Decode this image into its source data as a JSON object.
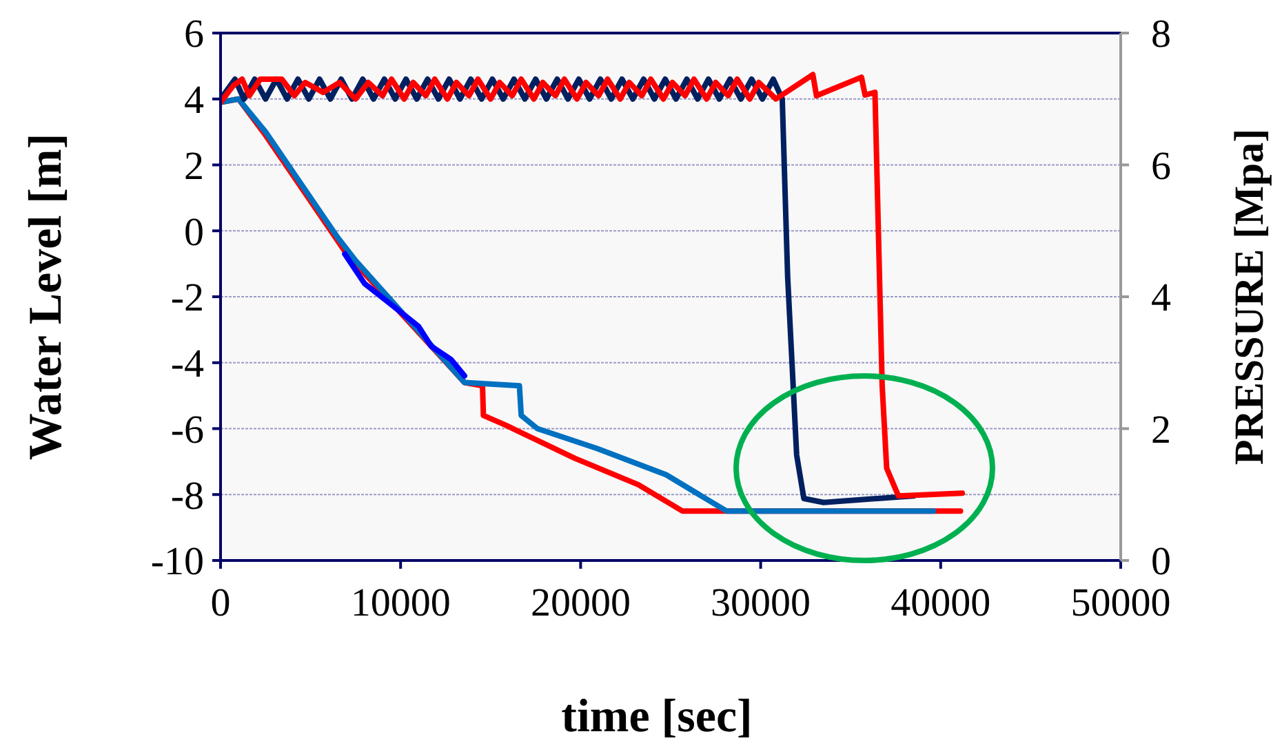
{
  "chart_data": {
    "type": "line",
    "xlabel": "time [sec]",
    "ylabel": "Water Level [m]",
    "y2label": "PRESSURE [Mpa]",
    "xlim": [
      0,
      50000
    ],
    "xticks": [
      0,
      10000,
      20000,
      30000,
      40000,
      50000
    ],
    "ylim": [
      -10,
      6
    ],
    "yticks": [
      -10,
      -8,
      -6,
      -4,
      -2,
      0,
      2,
      4,
      6
    ],
    "y2lim": [
      0,
      8
    ],
    "y2ticks": [
      0,
      2,
      4,
      6,
      8
    ],
    "grid": "y",
    "marker": "none",
    "line_style": "solid",
    "series": [
      {
        "color": "#ff0000",
        "x": [
          0,
          1000,
          2500,
          4000,
          5500,
          6500,
          7000,
          13550,
          14550,
          14600,
          15850,
          19680,
          23200,
          25650,
          41100
        ],
        "values": [
          3.9,
          4.0,
          2.9,
          1.7,
          0.5,
          -0.3,
          -0.7,
          -4.6,
          -4.7,
          -5.6,
          -5.9,
          -6.9,
          -7.7,
          -8.5,
          -8.5
        ]
      },
      {
        "color": "#0070c0",
        "x": [
          0,
          1000,
          2500,
          4000,
          5500,
          6500,
          7500,
          13550,
          16600,
          16700,
          17600,
          20900,
          24750,
          28100,
          39600
        ],
        "values": [
          3.9,
          4.0,
          3.0,
          1.8,
          0.6,
          -0.2,
          -0.9,
          -4.6,
          -4.7,
          -5.6,
          -6.0,
          -6.6,
          -7.4,
          -8.5,
          -8.5
        ]
      },
      {
        "color": "#0000ff",
        "x": [
          6900,
          8000,
          9400,
          11000,
          11700,
          12800,
          13550
        ],
        "values": [
          -0.7,
          -1.6,
          -2.2,
          -2.9,
          -3.5,
          -3.9,
          -4.4
        ]
      },
      {
        "color": "#002060",
        "axis": "y2",
        "x": [
          0,
          800,
          1300,
          1900,
          2500,
          3100,
          3700,
          4300,
          4900,
          5500,
          6100,
          6700,
          7300,
          7900,
          8500,
          9100,
          9700,
          10300,
          10900,
          11500,
          12100,
          12700,
          13300,
          13900,
          14500,
          15100,
          15700,
          16300,
          16900,
          17500,
          18100,
          18700,
          19300,
          19900,
          20500,
          21100,
          21700,
          22300,
          22900,
          23500,
          24100,
          24700,
          25300,
          25900,
          26500,
          27100,
          27700,
          28300,
          28900,
          29500,
          30100,
          30700,
          31200,
          31500,
          32000,
          32400,
          33500,
          38500
        ],
        "values": [
          7.0,
          7.3,
          7.0,
          7.3,
          7.0,
          7.3,
          7.0,
          7.3,
          7.0,
          7.3,
          7.0,
          7.3,
          7.0,
          7.3,
          7.0,
          7.3,
          7.0,
          7.3,
          7.0,
          7.3,
          7.0,
          7.3,
          7.0,
          7.3,
          7.0,
          7.3,
          7.0,
          7.3,
          7.0,
          7.3,
          7.0,
          7.3,
          7.0,
          7.3,
          7.0,
          7.3,
          7.0,
          7.3,
          7.0,
          7.3,
          7.0,
          7.3,
          7.0,
          7.3,
          7.0,
          7.3,
          7.0,
          7.3,
          7.0,
          7.3,
          7.0,
          7.3,
          7.0,
          4.3,
          1.6,
          0.94,
          0.88,
          0.98
        ]
      },
      {
        "color": "#ff0000",
        "axis": "y2",
        "x": [
          0,
          700,
          1200,
          1600,
          2200,
          3400,
          4100,
          4700,
          5700,
          6600,
          7500,
          8200,
          9000,
          9500,
          10200,
          10700,
          11400,
          11900,
          12600,
          13100,
          13800,
          14300,
          15000,
          15500,
          16200,
          16700,
          17400,
          17900,
          18600,
          19100,
          19800,
          20300,
          21000,
          21500,
          22200,
          22700,
          23400,
          23900,
          24600,
          25100,
          25800,
          26300,
          27000,
          27500,
          28200,
          28700,
          29400,
          29900,
          30850,
          32900,
          33100,
          35600,
          35800,
          36350,
          36750,
          37000,
          37650,
          41200
        ],
        "values": [
          6.95,
          7.2,
          7.3,
          7.05,
          7.3,
          7.3,
          7.05,
          7.25,
          7.1,
          7.25,
          7.0,
          7.25,
          7.05,
          7.3,
          7.0,
          7.25,
          7.05,
          7.3,
          7.0,
          7.25,
          7.05,
          7.3,
          7.0,
          7.25,
          7.05,
          7.3,
          7.0,
          7.25,
          7.05,
          7.3,
          7.0,
          7.25,
          7.05,
          7.3,
          7.0,
          7.25,
          7.05,
          7.3,
          7.0,
          7.25,
          7.05,
          7.3,
          7.0,
          7.25,
          7.05,
          7.3,
          7.0,
          7.25,
          7.0,
          7.37,
          7.05,
          7.33,
          7.06,
          7.1,
          2.65,
          1.4,
          0.98,
          1.02
        ]
      }
    ]
  }
}
